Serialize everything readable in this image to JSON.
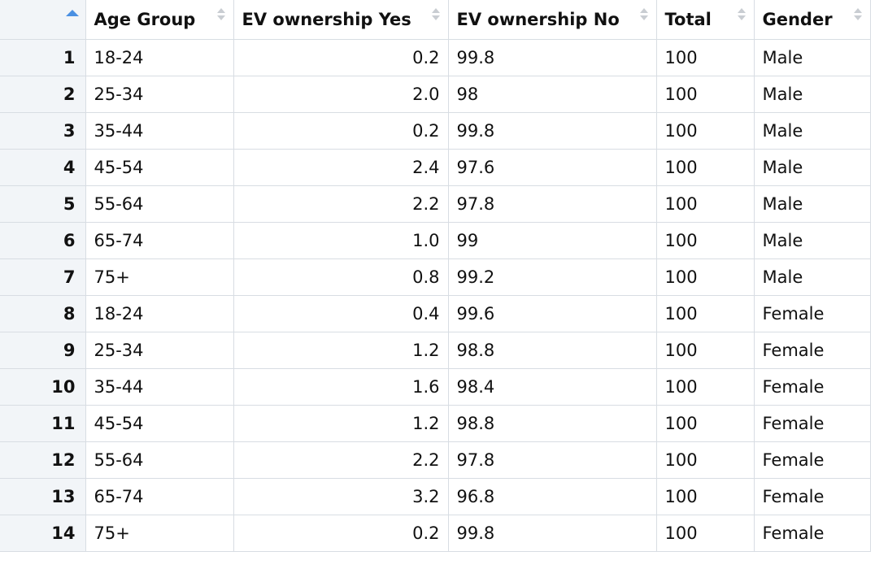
{
  "columns": [
    "",
    "Age Group",
    "EV ownership Yes",
    "EV ownership No",
    "Total",
    "Gender"
  ],
  "sort": {
    "column_index": 0,
    "direction": "asc",
    "active_icon": "sort-asc-icon",
    "inactive_icon": "sort-both-icon"
  },
  "colors": {
    "header_bg": "#ffffff",
    "index_bg": "#f2f5f8",
    "grid_line": "#d8dde3",
    "sort_active": "#4a90e2",
    "sort_inactive": "#c9cdd2"
  },
  "rows": [
    {
      "index": "1",
      "age_group": "18-24",
      "yes": "0.2",
      "no": "99.8",
      "total": "100",
      "gender": "Male"
    },
    {
      "index": "2",
      "age_group": "25-34",
      "yes": "2.0",
      "no": "98",
      "total": "100",
      "gender": "Male"
    },
    {
      "index": "3",
      "age_group": "35-44",
      "yes": "0.2",
      "no": "99.8",
      "total": "100",
      "gender": "Male"
    },
    {
      "index": "4",
      "age_group": "45-54",
      "yes": "2.4",
      "no": "97.6",
      "total": "100",
      "gender": "Male"
    },
    {
      "index": "5",
      "age_group": "55-64",
      "yes": "2.2",
      "no": "97.8",
      "total": "100",
      "gender": "Male"
    },
    {
      "index": "6",
      "age_group": "65-74",
      "yes": "1.0",
      "no": "99",
      "total": "100",
      "gender": "Male"
    },
    {
      "index": "7",
      "age_group": "75+",
      "yes": "0.8",
      "no": "99.2",
      "total": "100",
      "gender": "Male"
    },
    {
      "index": "8",
      "age_group": "18-24",
      "yes": "0.4",
      "no": "99.6",
      "total": "100",
      "gender": "Female"
    },
    {
      "index": "9",
      "age_group": "25-34",
      "yes": "1.2",
      "no": "98.8",
      "total": "100",
      "gender": "Female"
    },
    {
      "index": "10",
      "age_group": "35-44",
      "yes": "1.6",
      "no": "98.4",
      "total": "100",
      "gender": "Female"
    },
    {
      "index": "11",
      "age_group": "45-54",
      "yes": "1.2",
      "no": "98.8",
      "total": "100",
      "gender": "Female"
    },
    {
      "index": "12",
      "age_group": "55-64",
      "yes": "2.2",
      "no": "97.8",
      "total": "100",
      "gender": "Female"
    },
    {
      "index": "13",
      "age_group": "65-74",
      "yes": "3.2",
      "no": "96.8",
      "total": "100",
      "gender": "Female"
    },
    {
      "index": "14",
      "age_group": "75+",
      "yes": "0.2",
      "no": "99.8",
      "total": "100",
      "gender": "Female"
    }
  ]
}
